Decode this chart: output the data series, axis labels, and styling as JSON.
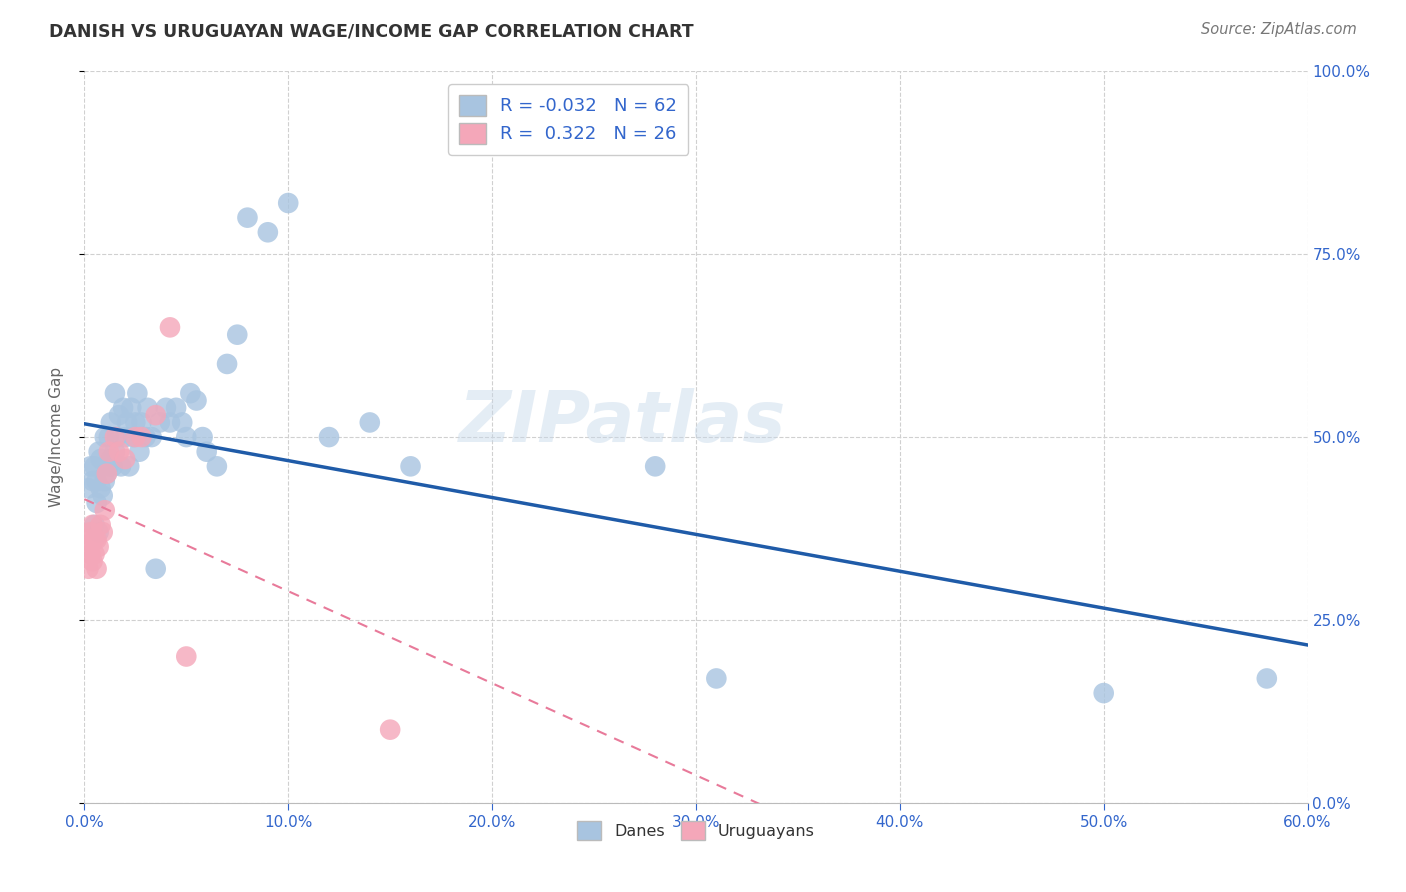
{
  "title": "DANISH VS URUGUAYAN WAGE/INCOME GAP CORRELATION CHART",
  "source": "Source: ZipAtlas.com",
  "ylabel": "Wage/Income Gap",
  "r_danes": -0.032,
  "n_danes": 62,
  "r_uruguayans": 0.322,
  "n_uruguayans": 26,
  "danes_color": "#a8c4e0",
  "uruguayans_color": "#f4a7b9",
  "danes_line_color": "#1f5ba8",
  "uruguayans_line_color": "#e87a9a",
  "title_color": "#333333",
  "tick_color": "#3366cc",
  "watermark": "ZIPatlas",
  "xmin": 0.0,
  "xmax": 0.6,
  "ymin": 0.0,
  "ymax": 1.0,
  "danes_x": [
    0.002,
    0.003,
    0.004,
    0.005,
    0.005,
    0.006,
    0.006,
    0.007,
    0.007,
    0.008,
    0.008,
    0.009,
    0.01,
    0.01,
    0.011,
    0.012,
    0.012,
    0.013,
    0.013,
    0.014,
    0.015,
    0.015,
    0.016,
    0.017,
    0.018,
    0.019,
    0.02,
    0.021,
    0.022,
    0.023,
    0.024,
    0.025,
    0.026,
    0.027,
    0.028,
    0.03,
    0.031,
    0.033,
    0.035,
    0.037,
    0.04,
    0.042,
    0.045,
    0.048,
    0.05,
    0.052,
    0.055,
    0.058,
    0.06,
    0.065,
    0.07,
    0.075,
    0.08,
    0.09,
    0.1,
    0.12,
    0.14,
    0.16,
    0.28,
    0.31,
    0.5,
    0.58
  ],
  "danes_y": [
    0.43,
    0.46,
    0.44,
    0.38,
    0.46,
    0.41,
    0.44,
    0.37,
    0.48,
    0.43,
    0.47,
    0.42,
    0.44,
    0.5,
    0.45,
    0.46,
    0.5,
    0.47,
    0.52,
    0.46,
    0.48,
    0.56,
    0.5,
    0.53,
    0.46,
    0.54,
    0.5,
    0.52,
    0.46,
    0.54,
    0.5,
    0.52,
    0.56,
    0.48,
    0.52,
    0.5,
    0.54,
    0.5,
    0.32,
    0.52,
    0.54,
    0.52,
    0.54,
    0.52,
    0.5,
    0.56,
    0.55,
    0.5,
    0.48,
    0.46,
    0.6,
    0.64,
    0.8,
    0.78,
    0.82,
    0.5,
    0.52,
    0.46,
    0.46,
    0.17,
    0.15,
    0.17
  ],
  "uruguayans_x": [
    0.001,
    0.002,
    0.002,
    0.003,
    0.003,
    0.004,
    0.004,
    0.005,
    0.005,
    0.006,
    0.006,
    0.007,
    0.008,
    0.009,
    0.01,
    0.011,
    0.012,
    0.015,
    0.017,
    0.02,
    0.025,
    0.028,
    0.035,
    0.042,
    0.05,
    0.15
  ],
  "uruguayans_y": [
    0.35,
    0.32,
    0.36,
    0.34,
    0.37,
    0.33,
    0.38,
    0.34,
    0.36,
    0.32,
    0.36,
    0.35,
    0.38,
    0.37,
    0.4,
    0.45,
    0.48,
    0.5,
    0.48,
    0.47,
    0.5,
    0.5,
    0.53,
    0.65,
    0.2,
    0.1
  ],
  "legend_color": "#3366cc",
  "background_color": "#ffffff",
  "grid_color": "#d0d0d0"
}
